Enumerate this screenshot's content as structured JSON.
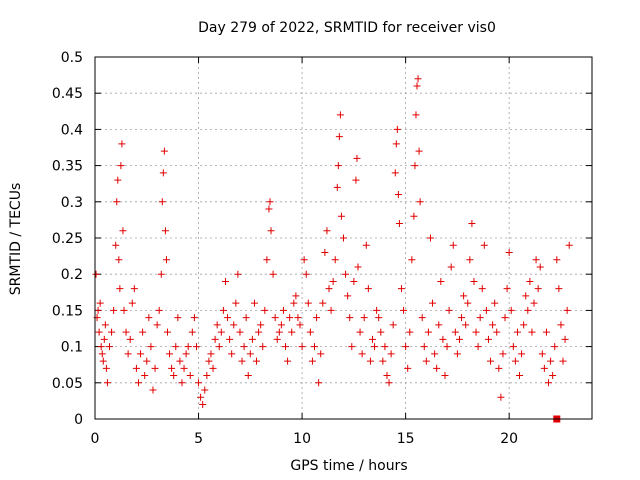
{
  "chart_data": {
    "type": "scatter",
    "title": "Day 279 of 2022, SRMTID for receiver vis0",
    "xlabel": "GPS time / hours",
    "ylabel": "SRMTID / TECUs",
    "xlim": [
      0,
      24
    ],
    "ylim": [
      0,
      0.5
    ],
    "xticks": [
      0,
      5,
      10,
      15,
      20
    ],
    "yticks": [
      0,
      0.05,
      0.1,
      0.15,
      0.2,
      0.25,
      0.3,
      0.35,
      0.4,
      0.45,
      0.5
    ],
    "xtick_labels": [
      "0",
      "5",
      "10",
      "15",
      "20"
    ],
    "ytick_labels": [
      "0",
      "0.05",
      "0.1",
      "0.15",
      "0.2",
      "0.25",
      "0.3",
      "0.35",
      "0.4",
      "0.45",
      "0.5"
    ],
    "grid": true,
    "marker": "plus",
    "color": "#e00000",
    "special_marker": {
      "shape": "square",
      "x": 22.3,
      "y": 0.0
    },
    "series": [
      {
        "name": "vis0",
        "points": [
          [
            0.05,
            0.2
          ],
          [
            0.1,
            0.14
          ],
          [
            0.15,
            0.15
          ],
          [
            0.2,
            0.12
          ],
          [
            0.25,
            0.16
          ],
          [
            0.3,
            0.1
          ],
          [
            0.35,
            0.09
          ],
          [
            0.4,
            0.08
          ],
          [
            0.45,
            0.11
          ],
          [
            0.5,
            0.13
          ],
          [
            0.55,
            0.07
          ],
          [
            0.6,
            0.05
          ],
          [
            0.7,
            0.1
          ],
          [
            0.8,
            0.12
          ],
          [
            0.9,
            0.15
          ],
          [
            1.0,
            0.24
          ],
          [
            1.05,
            0.3
          ],
          [
            1.1,
            0.33
          ],
          [
            1.15,
            0.22
          ],
          [
            1.2,
            0.18
          ],
          [
            1.25,
            0.35
          ],
          [
            1.3,
            0.38
          ],
          [
            1.35,
            0.26
          ],
          [
            1.4,
            0.15
          ],
          [
            1.5,
            0.12
          ],
          [
            1.6,
            0.09
          ],
          [
            1.7,
            0.11
          ],
          [
            1.8,
            0.16
          ],
          [
            1.9,
            0.18
          ],
          [
            2.0,
            0.07
          ],
          [
            2.1,
            0.05
          ],
          [
            2.2,
            0.09
          ],
          [
            2.3,
            0.12
          ],
          [
            2.4,
            0.06
          ],
          [
            2.5,
            0.08
          ],
          [
            2.6,
            0.14
          ],
          [
            2.7,
            0.1
          ],
          [
            2.8,
            0.04
          ],
          [
            2.9,
            0.07
          ],
          [
            3.0,
            0.13
          ],
          [
            3.1,
            0.15
          ],
          [
            3.2,
            0.2
          ],
          [
            3.25,
            0.3
          ],
          [
            3.3,
            0.34
          ],
          [
            3.35,
            0.37
          ],
          [
            3.4,
            0.26
          ],
          [
            3.45,
            0.22
          ],
          [
            3.5,
            0.12
          ],
          [
            3.6,
            0.09
          ],
          [
            3.7,
            0.07
          ],
          [
            3.8,
            0.06
          ],
          [
            3.9,
            0.1
          ],
          [
            4.0,
            0.14
          ],
          [
            4.1,
            0.08
          ],
          [
            4.2,
            0.05
          ],
          [
            4.3,
            0.07
          ],
          [
            4.4,
            0.09
          ],
          [
            4.5,
            0.1
          ],
          [
            4.6,
            0.06
          ],
          [
            4.7,
            0.12
          ],
          [
            4.8,
            0.14
          ],
          [
            4.9,
            0.1
          ],
          [
            5.0,
            0.05
          ],
          [
            5.1,
            0.03
          ],
          [
            5.2,
            0.02
          ],
          [
            5.3,
            0.04
          ],
          [
            5.4,
            0.06
          ],
          [
            5.5,
            0.08
          ],
          [
            5.6,
            0.09
          ],
          [
            5.7,
            0.07
          ],
          [
            5.8,
            0.11
          ],
          [
            5.9,
            0.13
          ],
          [
            6.0,
            0.1
          ],
          [
            6.1,
            0.12
          ],
          [
            6.2,
            0.15
          ],
          [
            6.3,
            0.19
          ],
          [
            6.4,
            0.14
          ],
          [
            6.5,
            0.11
          ],
          [
            6.6,
            0.09
          ],
          [
            6.7,
            0.13
          ],
          [
            6.8,
            0.16
          ],
          [
            6.9,
            0.2
          ],
          [
            7.0,
            0.12
          ],
          [
            7.1,
            0.08
          ],
          [
            7.2,
            0.1
          ],
          [
            7.3,
            0.14
          ],
          [
            7.4,
            0.06
          ],
          [
            7.5,
            0.09
          ],
          [
            7.6,
            0.11
          ],
          [
            7.7,
            0.16
          ],
          [
            7.8,
            0.08
          ],
          [
            7.9,
            0.12
          ],
          [
            8.0,
            0.13
          ],
          [
            8.1,
            0.1
          ],
          [
            8.2,
            0.15
          ],
          [
            8.3,
            0.22
          ],
          [
            8.4,
            0.29
          ],
          [
            8.45,
            0.3
          ],
          [
            8.5,
            0.26
          ],
          [
            8.6,
            0.2
          ],
          [
            8.7,
            0.14
          ],
          [
            8.8,
            0.11
          ],
          [
            8.9,
            0.12
          ],
          [
            9.0,
            0.13
          ],
          [
            9.1,
            0.15
          ],
          [
            9.2,
            0.1
          ],
          [
            9.3,
            0.08
          ],
          [
            9.4,
            0.14
          ],
          [
            9.5,
            0.12
          ],
          [
            9.6,
            0.16
          ],
          [
            9.7,
            0.17
          ],
          [
            9.8,
            0.14
          ],
          [
            9.9,
            0.13
          ],
          [
            10.0,
            0.1
          ],
          [
            10.1,
            0.22
          ],
          [
            10.2,
            0.2
          ],
          [
            10.3,
            0.16
          ],
          [
            10.4,
            0.12
          ],
          [
            10.5,
            0.08
          ],
          [
            10.6,
            0.1
          ],
          [
            10.7,
            0.14
          ],
          [
            10.8,
            0.05
          ],
          [
            10.9,
            0.09
          ],
          [
            11.0,
            0.16
          ],
          [
            11.1,
            0.23
          ],
          [
            11.2,
            0.26
          ],
          [
            11.3,
            0.18
          ],
          [
            11.4,
            0.15
          ],
          [
            11.5,
            0.19
          ],
          [
            11.6,
            0.22
          ],
          [
            11.7,
            0.32
          ],
          [
            11.75,
            0.35
          ],
          [
            11.8,
            0.39
          ],
          [
            11.85,
            0.42
          ],
          [
            11.9,
            0.28
          ],
          [
            12.0,
            0.25
          ],
          [
            12.1,
            0.2
          ],
          [
            12.2,
            0.17
          ],
          [
            12.3,
            0.14
          ],
          [
            12.4,
            0.1
          ],
          [
            12.5,
            0.19
          ],
          [
            12.6,
            0.33
          ],
          [
            12.65,
            0.36
          ],
          [
            12.7,
            0.21
          ],
          [
            12.8,
            0.12
          ],
          [
            12.9,
            0.09
          ],
          [
            13.0,
            0.14
          ],
          [
            13.1,
            0.24
          ],
          [
            13.2,
            0.18
          ],
          [
            13.3,
            0.08
          ],
          [
            13.4,
            0.11
          ],
          [
            13.5,
            0.1
          ],
          [
            13.6,
            0.15
          ],
          [
            13.7,
            0.14
          ],
          [
            13.8,
            0.12
          ],
          [
            13.9,
            0.08
          ],
          [
            14.0,
            0.1
          ],
          [
            14.1,
            0.06
          ],
          [
            14.2,
            0.05
          ],
          [
            14.3,
            0.09
          ],
          [
            14.4,
            0.13
          ],
          [
            14.5,
            0.34
          ],
          [
            14.55,
            0.38
          ],
          [
            14.6,
            0.4
          ],
          [
            14.65,
            0.31
          ],
          [
            14.7,
            0.27
          ],
          [
            14.8,
            0.18
          ],
          [
            14.9,
            0.15
          ],
          [
            15.0,
            0.1
          ],
          [
            15.1,
            0.07
          ],
          [
            15.2,
            0.12
          ],
          [
            15.3,
            0.22
          ],
          [
            15.4,
            0.28
          ],
          [
            15.45,
            0.35
          ],
          [
            15.5,
            0.42
          ],
          [
            15.55,
            0.46
          ],
          [
            15.6,
            0.47
          ],
          [
            15.65,
            0.37
          ],
          [
            15.7,
            0.3
          ],
          [
            15.8,
            0.14
          ],
          [
            15.9,
            0.1
          ],
          [
            16.0,
            0.08
          ],
          [
            16.1,
            0.12
          ],
          [
            16.2,
            0.25
          ],
          [
            16.3,
            0.16
          ],
          [
            16.4,
            0.09
          ],
          [
            16.5,
            0.07
          ],
          [
            16.6,
            0.13
          ],
          [
            16.7,
            0.19
          ],
          [
            16.8,
            0.11
          ],
          [
            16.9,
            0.06
          ],
          [
            17.0,
            0.1
          ],
          [
            17.1,
            0.15
          ],
          [
            17.2,
            0.21
          ],
          [
            17.3,
            0.24
          ],
          [
            17.4,
            0.12
          ],
          [
            17.5,
            0.09
          ],
          [
            17.6,
            0.11
          ],
          [
            17.7,
            0.14
          ],
          [
            17.8,
            0.17
          ],
          [
            17.9,
            0.13
          ],
          [
            18.0,
            0.16
          ],
          [
            18.1,
            0.22
          ],
          [
            18.2,
            0.27
          ],
          [
            18.3,
            0.19
          ],
          [
            18.4,
            0.12
          ],
          [
            18.5,
            0.1
          ],
          [
            18.6,
            0.14
          ],
          [
            18.7,
            0.18
          ],
          [
            18.8,
            0.24
          ],
          [
            18.9,
            0.15
          ],
          [
            19.0,
            0.11
          ],
          [
            19.1,
            0.08
          ],
          [
            19.2,
            0.13
          ],
          [
            19.3,
            0.16
          ],
          [
            19.4,
            0.12
          ],
          [
            19.5,
            0.07
          ],
          [
            19.6,
            0.03
          ],
          [
            19.7,
            0.09
          ],
          [
            19.8,
            0.14
          ],
          [
            19.9,
            0.18
          ],
          [
            20.0,
            0.23
          ],
          [
            20.1,
            0.15
          ],
          [
            20.2,
            0.1
          ],
          [
            20.3,
            0.08
          ],
          [
            20.4,
            0.12
          ],
          [
            20.5,
            0.06
          ],
          [
            20.6,
            0.09
          ],
          [
            20.7,
            0.13
          ],
          [
            20.8,
            0.17
          ],
          [
            20.9,
            0.15
          ],
          [
            21.0,
            0.19
          ],
          [
            21.1,
            0.12
          ],
          [
            21.2,
            0.16
          ],
          [
            21.3,
            0.22
          ],
          [
            21.4,
            0.18
          ],
          [
            21.5,
            0.21
          ],
          [
            21.6,
            0.09
          ],
          [
            21.7,
            0.07
          ],
          [
            21.8,
            0.12
          ],
          [
            21.9,
            0.05
          ],
          [
            22.0,
            0.08
          ],
          [
            22.1,
            0.06
          ],
          [
            22.2,
            0.1
          ],
          [
            22.3,
            0.22
          ],
          [
            22.4,
            0.18
          ],
          [
            22.5,
            0.13
          ],
          [
            22.6,
            0.08
          ],
          [
            22.7,
            0.11
          ],
          [
            22.8,
            0.15
          ],
          [
            22.9,
            0.24
          ]
        ]
      }
    ]
  }
}
